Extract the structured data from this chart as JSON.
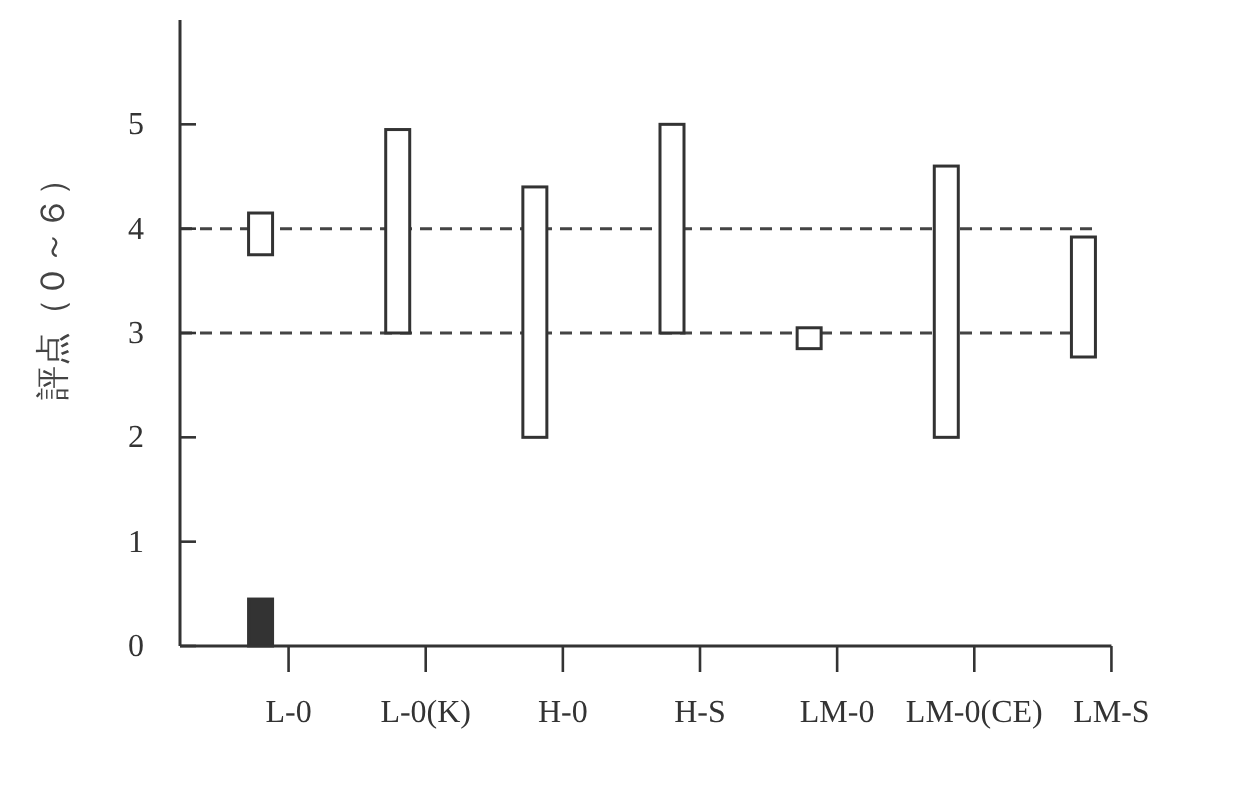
{
  "chart_data": {
    "type": "bar",
    "ylabel": "評点（０～６）",
    "categories": [
      "L-0",
      "L-0(K)",
      "H-0",
      "H-S",
      "LM-0",
      "LM-0(CE)",
      "LM-S"
    ],
    "series": [
      {
        "color": "#ffffff",
        "base": [
          3.75,
          3,
          2,
          3,
          2.85,
          2,
          2.77
        ],
        "values": [
          0.4,
          1.95,
          2.4,
          2,
          0.2,
          2.6,
          1.15
        ]
      },
      {
        "color": "#333333",
        "values": [
          0.45,
          null,
          null,
          null,
          null,
          null,
          null
        ]
      }
    ],
    "ylim": [
      0,
      6
    ],
    "yticks": [
      0,
      1,
      2,
      3,
      4,
      5
    ],
    "ref_lines": [
      {
        "axis": "y",
        "value": 4,
        "color": "#444444",
        "line_style": "dashed"
      },
      {
        "axis": "y",
        "value": 3,
        "color": "#444444",
        "line_style": "dashed"
      }
    ],
    "grid": false
  }
}
